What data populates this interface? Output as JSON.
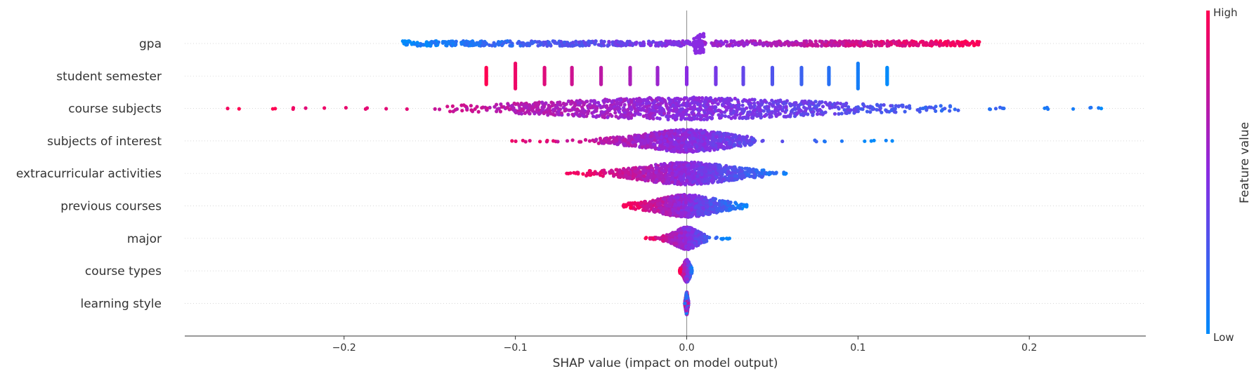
{
  "chart_data": {
    "type": "scatter",
    "subtype": "shap-beeswarm",
    "xlabel": "SHAP value (impact on model output)",
    "xlim": [
      -0.293,
      0.268
    ],
    "xticks": [
      "−0.2",
      "−0.1",
      "0.0",
      "0.1",
      "0.2"
    ],
    "xtick_values": [
      -0.2,
      -0.1,
      0.0,
      0.1,
      0.2
    ],
    "features": [
      {
        "name": "gpa",
        "min": -0.166,
        "max": 0.171,
        "dense_min": -0.166,
        "dense_max": 0.171,
        "spread": "uniform",
        "high_side": "positive"
      },
      {
        "name": "student semester",
        "discrete": [
          -0.117,
          -0.1,
          -0.083,
          -0.067,
          -0.05,
          -0.033,
          -0.017,
          0.0,
          0.017,
          0.033,
          0.05,
          0.067,
          0.083,
          0.1,
          0.117
        ],
        "high_side": "negative"
      },
      {
        "name": "course subjects",
        "min": -0.268,
        "max": 0.242,
        "dense_min": -0.145,
        "dense_max": 0.16,
        "spread": "center",
        "high_side": "negative"
      },
      {
        "name": "subjects of interest",
        "min": -0.102,
        "max": 0.12,
        "dense_min": -0.06,
        "dense_max": 0.04,
        "spread": "center",
        "high_side": "negative"
      },
      {
        "name": "extracurricular activities",
        "min": -0.07,
        "max": 0.058,
        "dense_min": -0.06,
        "dense_max": 0.045,
        "spread": "center",
        "high_side": "negative"
      },
      {
        "name": "previous courses",
        "min": -0.037,
        "max": 0.035,
        "dense_min": -0.035,
        "dense_max": 0.033,
        "spread": "center",
        "high_side": "negative"
      },
      {
        "name": "major",
        "min": -0.024,
        "max": 0.025,
        "dense_min": -0.015,
        "dense_max": 0.012,
        "spread": "center",
        "high_side": "negative"
      },
      {
        "name": "course types",
        "min": -0.004,
        "max": 0.003,
        "dense_min": -0.004,
        "dense_max": 0.003,
        "spread": "center",
        "high_side": "negative"
      },
      {
        "name": "learning style",
        "min": -0.001,
        "max": 0.001,
        "dense_min": -0.001,
        "dense_max": 0.001,
        "spread": "center",
        "high_side": "mixed"
      }
    ],
    "colorbar": {
      "title": "Feature value",
      "high_label": "High",
      "low_label": "Low",
      "high_color": "#ff0052",
      "mid_color": "#8a2be2",
      "low_color": "#008bfb"
    },
    "zero_line_color": "#999999",
    "grid": false
  }
}
